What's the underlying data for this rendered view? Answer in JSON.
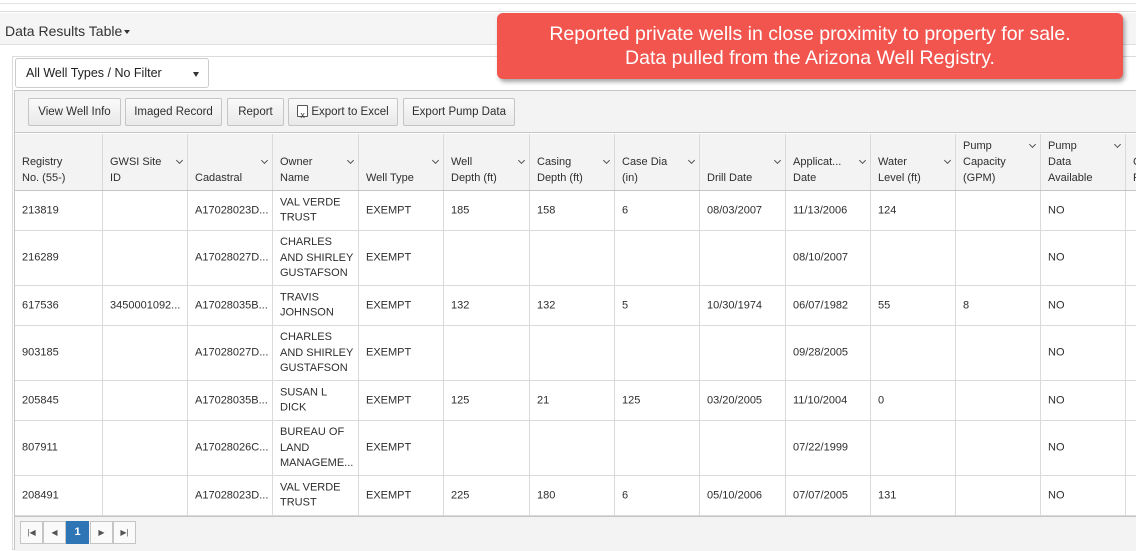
{
  "section": {
    "title": "Data Results Table"
  },
  "filter": {
    "selected": "All Well Types / No Filter"
  },
  "toolbar": {
    "view_well_info": "View Well Info",
    "imaged_record": "Imaged Record",
    "report": "Report",
    "export_excel": "Export to Excel",
    "export_pump": "Export Pump Data"
  },
  "columns": [
    {
      "l1": "Registry",
      "l2": "No. (55-)"
    },
    {
      "l1": "GWSI Site",
      "l2": "ID"
    },
    {
      "l1": "",
      "l2": "Cadastral"
    },
    {
      "l1": "Owner",
      "l2": "Name"
    },
    {
      "l1": "",
      "l2": "Well Type"
    },
    {
      "l1": "Well",
      "l2": "Depth (ft)"
    },
    {
      "l1": "Casing",
      "l2": "Depth (ft)"
    },
    {
      "l1": "Case Dia",
      "l2": "(in)"
    },
    {
      "l1": "",
      "l2": "Drill Date"
    },
    {
      "l1": "Applicat...",
      "l2": "Date"
    },
    {
      "l1": "Water",
      "l2": "Level (ft)"
    },
    {
      "l1": "Pump",
      "l2": "Capacity",
      "l3": "(GPM)"
    },
    {
      "l1": "Pump",
      "l2": "Data",
      "l3": "Available"
    },
    {
      "l1": "C",
      "l2": "F"
    }
  ],
  "rows": [
    [
      "213819",
      "",
      "A17028023D...",
      "VAL VERDE TRUST",
      "EXEMPT",
      "185",
      "158",
      "6",
      "08/03/2007",
      "11/13/2006",
      "124",
      "",
      "NO",
      ""
    ],
    [
      "216289",
      "",
      "A17028027D...",
      "CHARLES AND SHIRLEY GUSTAFSON",
      "EXEMPT",
      "",
      "",
      "",
      "",
      "08/10/2007",
      "",
      "",
      "NO",
      ""
    ],
    [
      "617536",
      "3450001092...",
      "A17028035B...",
      "TRAVIS JOHNSON",
      "EXEMPT",
      "132",
      "132",
      "5",
      "10/30/1974",
      "06/07/1982",
      "55",
      "8",
      "NO",
      ""
    ],
    [
      "903185",
      "",
      "A17028027D...",
      "CHARLES AND SHIRLEY GUSTAFSON",
      "EXEMPT",
      "",
      "",
      "",
      "",
      "09/28/2005",
      "",
      "",
      "NO",
      ""
    ],
    [
      "205845",
      "",
      "A17028035B...",
      "SUSAN L DICK",
      "EXEMPT",
      "125",
      "21",
      "125",
      "03/20/2005",
      "11/10/2004",
      "0",
      "",
      "NO",
      ""
    ],
    [
      "807911",
      "",
      "A17028026C...",
      "BUREAU OF LAND MANAGEME...",
      "EXEMPT",
      "",
      "",
      "",
      "",
      "07/22/1999",
      "",
      "",
      "NO",
      ""
    ],
    [
      "208491",
      "",
      "A17028023D...",
      "VAL VERDE TRUST",
      "EXEMPT",
      "225",
      "180",
      "6",
      "05/10/2006",
      "07/07/2005",
      "131",
      "",
      "NO",
      ""
    ]
  ],
  "pager": {
    "current_page": "1"
  },
  "callout": {
    "line1": "Reported private wells in close proximity to property for sale.",
    "line2": "Data pulled from the Arizona Well Registry."
  }
}
